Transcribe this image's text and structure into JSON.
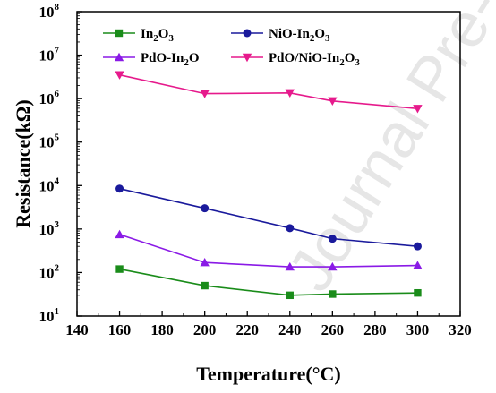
{
  "watermark": "Journal Pre-proof",
  "chart_data": {
    "type": "line",
    "xlabel": "Temperature(°C)",
    "ylabel": "Resistance(kΩ)",
    "xlim": [
      140,
      320
    ],
    "ylim": [
      10,
      100000000
    ],
    "yscale": "log",
    "x_ticks": [
      "140",
      "160",
      "180",
      "200",
      "220",
      "240",
      "260",
      "280",
      "300",
      "320"
    ],
    "y_tick_exponents": [
      "1",
      "2",
      "3",
      "4",
      "5",
      "6",
      "7",
      "8"
    ],
    "y_tick_base": "10",
    "legend_position": "top",
    "x": [
      160,
      200,
      240,
      260,
      300
    ],
    "series": [
      {
        "name": "In2O3",
        "label_parts": [
          [
            "In",
            ""
          ],
          [
            "2",
            "sub"
          ],
          [
            "O",
            ""
          ],
          [
            "3",
            "sub"
          ]
        ],
        "color": "#1a8c1a",
        "marker": "square",
        "values": [
          120,
          50,
          30,
          32,
          34
        ]
      },
      {
        "name": "NiO-In2O3",
        "label_parts": [
          [
            "NiO-In",
            ""
          ],
          [
            "2",
            "sub"
          ],
          [
            "O",
            ""
          ],
          [
            "3",
            "sub"
          ]
        ],
        "color": "#1a1a9c",
        "marker": "circle",
        "values": [
          8500,
          3000,
          1050,
          600,
          400
        ]
      },
      {
        "name": "PdO-In2O",
        "label_parts": [
          [
            "PdO-In",
            ""
          ],
          [
            "2",
            "sub"
          ],
          [
            "O",
            ""
          ]
        ],
        "color": "#8a1ae6",
        "marker": "triangle-up",
        "values": [
          750,
          170,
          135,
          135,
          145
        ]
      },
      {
        "name": "PdO/NiO-In2O3",
        "label_parts": [
          [
            "PdO/NiO-In",
            ""
          ],
          [
            "2",
            "sub"
          ],
          [
            "O",
            ""
          ],
          [
            "3",
            "sub"
          ]
        ],
        "color": "#e61a8c",
        "marker": "triangle-down",
        "values": [
          3500000,
          1300000,
          1350000,
          880000,
          590000
        ]
      }
    ]
  }
}
